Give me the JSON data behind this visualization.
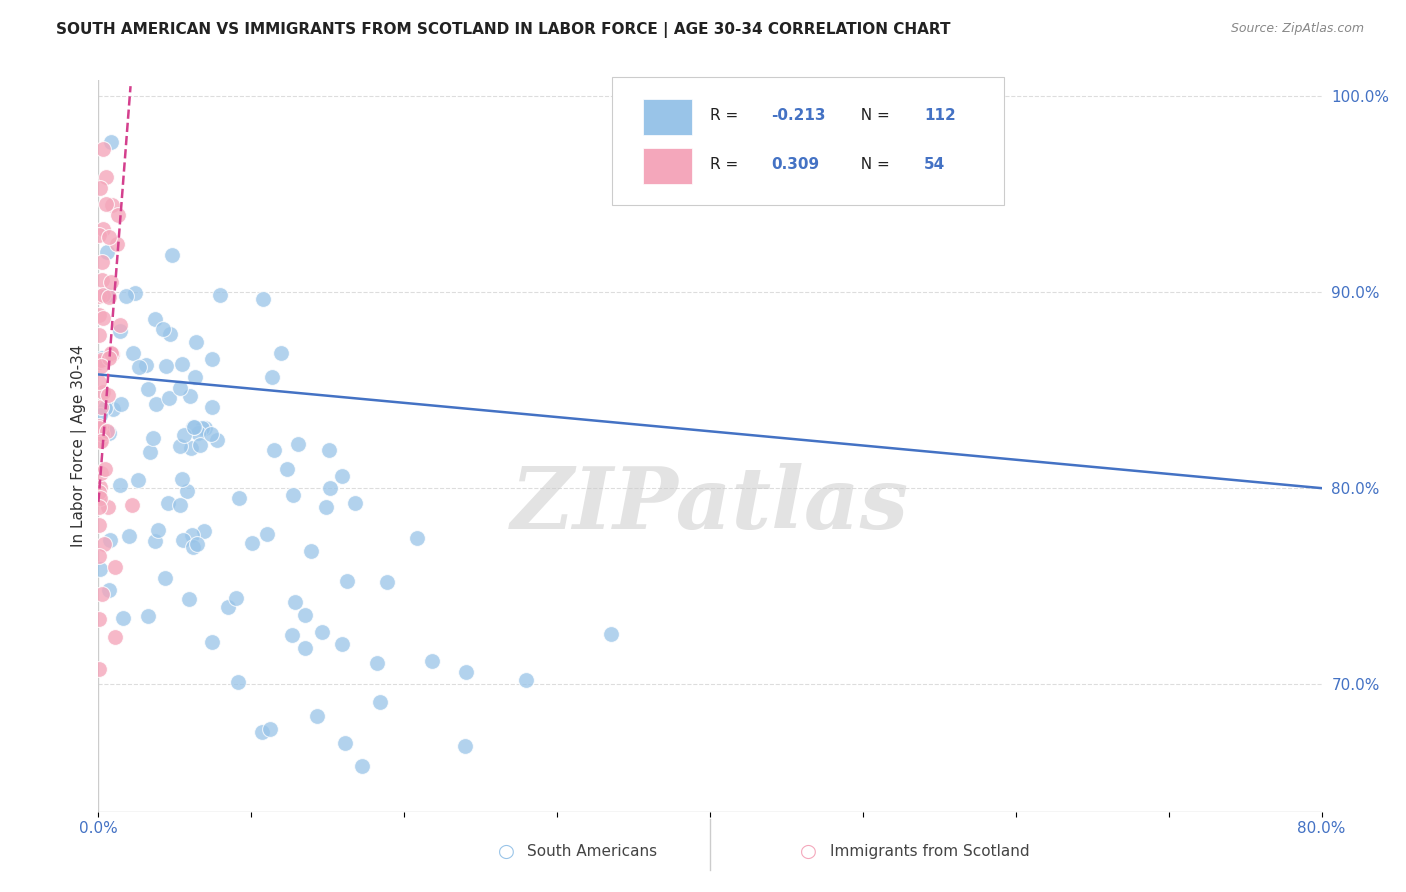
{
  "title": "SOUTH AMERICAN VS IMMIGRANTS FROM SCOTLAND IN LABOR FORCE | AGE 30-34 CORRELATION CHART",
  "source": "Source: ZipAtlas.com",
  "ylabel": "In Labor Force | Age 30-34",
  "xlim": [
    0.0,
    0.8
  ],
  "ylim": [
    0.635,
    1.008
  ],
  "yticks_right": [
    1.0,
    0.9,
    0.8,
    0.7
  ],
  "yticklabels_right": [
    "100.0%",
    "90.0%",
    "80.0%",
    "70.0%"
  ],
  "legend_r1": "-0.213",
  "legend_n1": "112",
  "legend_r2": "0.309",
  "legend_n2": "54",
  "legend_label1": "South Americans",
  "legend_label2": "Immigrants from Scotland",
  "blue_color": "#99C4E8",
  "pink_color": "#F4A7BB",
  "trend_blue_color": "#4472C4",
  "trend_pink_color": "#D43F8D",
  "blue_trend_x": [
    0.0,
    0.8
  ],
  "blue_trend_y": [
    0.858,
    0.8
  ],
  "pink_trend_x": [
    0.0,
    0.021
  ],
  "pink_trend_y": [
    0.793,
    1.005
  ],
  "watermark": "ZIPatlas",
  "background_color": "#FFFFFF",
  "grid_color": "#DDDDDD"
}
